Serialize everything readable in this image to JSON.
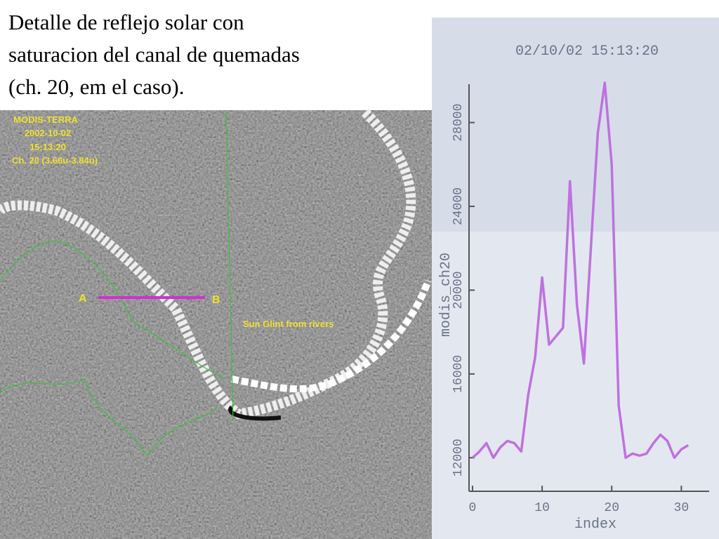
{
  "slide": {
    "title_lines": [
      "Detalle de reflejo solar con",
      "saturacion del canal de quemadas",
      "(ch. 20, em el caso)."
    ]
  },
  "satellite": {
    "labels": [
      "MODIS-TERRA",
      "2002-10-02",
      "15:13:20",
      "Ch. 20 (3.66u-3.84u)"
    ],
    "point_a": "A",
    "point_b": "B",
    "annotation": "Sun Glint from rivers"
  },
  "chart_data": {
    "type": "line",
    "title": "02/10/02 15:13:20",
    "x_label": "index",
    "y_label": "modis_ch20",
    "x": [
      0,
      1,
      2,
      3,
      4,
      5,
      6,
      7,
      8,
      9,
      10,
      11,
      12,
      13,
      14,
      15,
      16,
      17,
      18,
      19,
      20,
      21,
      22,
      23,
      24,
      25,
      26,
      27,
      28,
      29,
      30,
      31
    ],
    "values": [
      12000,
      12300,
      12700,
      12000,
      12500,
      12800,
      12700,
      12300,
      15000,
      16800,
      20600,
      17400,
      17800,
      18200,
      25200,
      19300,
      16500,
      22000,
      27500,
      29900,
      26000,
      14500,
      12000,
      12200,
      12100,
      12200,
      12700,
      13100,
      12800,
      12000,
      12400,
      12600
    ],
    "color": "#c070e0",
    "xlim": [
      -0.5,
      34
    ],
    "ylim": [
      10400,
      30500
    ],
    "xticks": [
      0,
      10,
      20,
      30
    ],
    "yticks": [
      12000,
      16000,
      20000,
      24000,
      28000
    ]
  }
}
